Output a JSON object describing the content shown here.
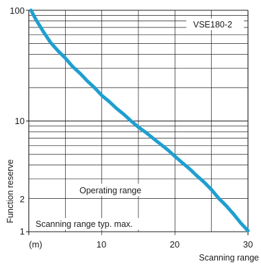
{
  "chart_data": {
    "type": "line",
    "title": "",
    "xlabel": "Scanning range",
    "ylabel": "Function reserve",
    "x_unit_label": "(m)",
    "x_ticks": [
      10,
      20,
      30
    ],
    "y_tick_labels": [
      "100",
      "10",
      "2",
      "1"
    ],
    "y_ticks": [
      100,
      10,
      2,
      1
    ],
    "xlim": [
      0,
      30
    ],
    "ylim": [
      1,
      100
    ],
    "y_scale": "log",
    "grid": true,
    "series": [
      {
        "name": "VSE180-2",
        "color": "#1f9fd0",
        "x": [
          0.3,
          1,
          2,
          3,
          4,
          5,
          6,
          7,
          8,
          9,
          10,
          11,
          12,
          13,
          14,
          15,
          16,
          17,
          18,
          19,
          20,
          21,
          22,
          23,
          24,
          25,
          26,
          27,
          28,
          29,
          30
        ],
        "y": [
          100,
          82,
          64,
          51,
          43,
          37,
          31,
          27,
          23,
          20,
          17,
          15,
          13,
          11.5,
          10,
          8.8,
          7.9,
          7.0,
          6.2,
          5.5,
          4.8,
          4.2,
          3.7,
          3.2,
          2.8,
          2.4,
          2.0,
          1.72,
          1.45,
          1.2,
          1.02
        ]
      }
    ],
    "annotations": {
      "series_label": "VSE180-2",
      "operating_range": "Operating range",
      "scanning_range_max": "Scanning range typ. max."
    }
  }
}
